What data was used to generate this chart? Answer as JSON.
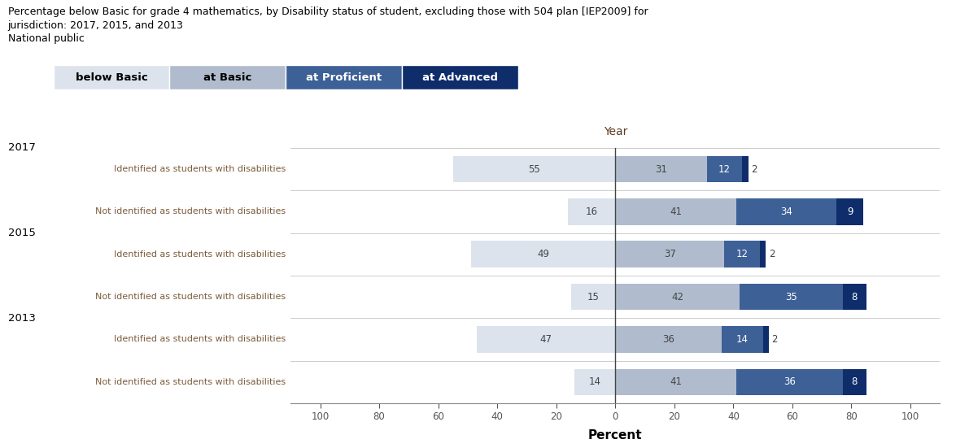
{
  "title_line1": "Percentage below Basic for grade 4 mathematics, by Disability status of student, excluding those with 504 plan [IEP2009] for",
  "title_line2": "jurisdiction: 2017, 2015, and 2013",
  "title_line3": "National public",
  "legend_labels": [
    "below Basic",
    "at Basic",
    "at Proficient",
    "at Advanced"
  ],
  "legend_colors": [
    "#dce3ed",
    "#b0bcce",
    "#3d6096",
    "#0f2d6b"
  ],
  "legend_text_colors": [
    "#000000",
    "#000000",
    "#ffffff",
    "#ffffff"
  ],
  "year_labels": [
    "2017",
    "2015",
    "2013"
  ],
  "row_labels": [
    "Identified as students with disabilities",
    "Not identified as students with disabilities",
    "Identified as students with disabilities",
    "Not identified as students with disabilities",
    "Identified as students with disabilities",
    "Not identified as students with disabilities"
  ],
  "row_label_color": "#7b5c3a",
  "year_label_color": "#000000",
  "data": [
    {
      "below_basic": 55,
      "at_basic": 31,
      "at_proficient": 12,
      "at_advanced": 2
    },
    {
      "below_basic": 16,
      "at_basic": 41,
      "at_proficient": 34,
      "at_advanced": 9
    },
    {
      "below_basic": 49,
      "at_basic": 37,
      "at_proficient": 12,
      "at_advanced": 2
    },
    {
      "below_basic": 15,
      "at_basic": 42,
      "at_proficient": 35,
      "at_advanced": 8
    },
    {
      "below_basic": 47,
      "at_basic": 36,
      "at_proficient": 14,
      "at_advanced": 2
    },
    {
      "below_basic": 14,
      "at_basic": 41,
      "at_proficient": 36,
      "at_advanced": 8
    }
  ],
  "colors": {
    "below_basic": "#dce3ed",
    "at_basic": "#b0bcce",
    "at_proficient": "#3d6096",
    "at_advanced": "#0f2d6b"
  },
  "xlim": [
    -110,
    110
  ],
  "xticks": [
    -100,
    -80,
    -60,
    -40,
    -20,
    0,
    20,
    40,
    60,
    80,
    100
  ],
  "xtick_labels": [
    "100",
    "80",
    "60",
    "40",
    "20",
    "0",
    "20",
    "40",
    "60",
    "80",
    "100"
  ],
  "xlabel": "Percent",
  "top_label": "Year",
  "bar_height": 0.62,
  "background_color": "#ffffff",
  "grid_color": "#cccccc"
}
